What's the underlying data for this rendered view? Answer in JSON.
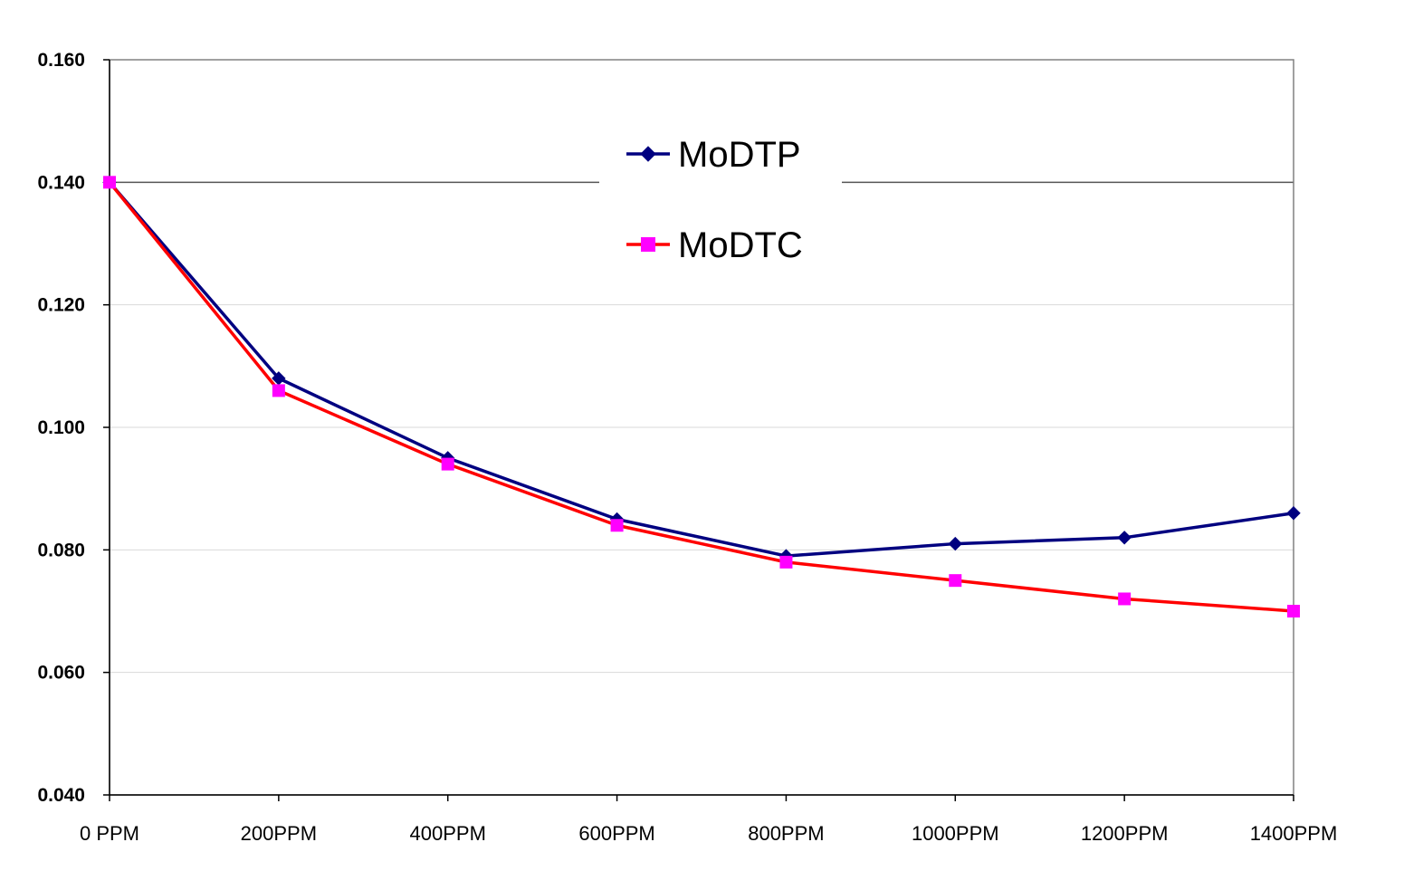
{
  "chart_data": {
    "type": "line",
    "title": "",
    "xlabel": "",
    "ylabel": "",
    "categories": [
      "0 PPM",
      "200PPM",
      "400PPM",
      "600PPM",
      "800PPM",
      "1000PPM",
      "1200PPM",
      "1400PPM"
    ],
    "ylim": [
      0.04,
      0.16
    ],
    "yticks": [
      "0.040",
      "0.060",
      "0.080",
      "0.100",
      "0.120",
      "0.140",
      "0.160"
    ],
    "grid": true,
    "legend_position": "top-center",
    "series": [
      {
        "name": "MoDTP",
        "color": "#000080",
        "marker": "diamond",
        "values": [
          0.14,
          0.108,
          0.095,
          0.085,
          0.079,
          0.081,
          0.082,
          0.086
        ]
      },
      {
        "name": "MoDTC",
        "color": "#ff0000",
        "marker_color": "#ff00ff",
        "marker": "square",
        "values": [
          0.14,
          0.106,
          0.094,
          0.084,
          0.078,
          0.075,
          0.072,
          0.07
        ]
      }
    ]
  }
}
